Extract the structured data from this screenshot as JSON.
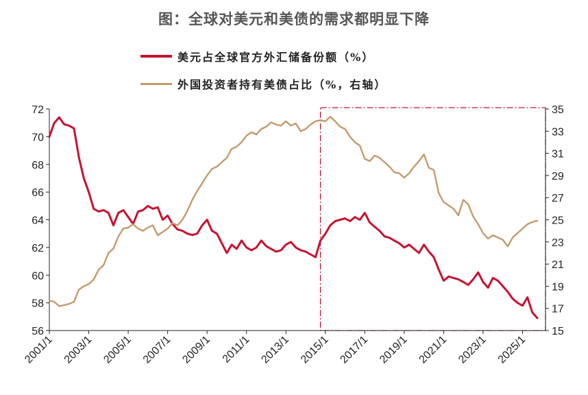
{
  "title": "图：全球对美元和美债的需求都明显下降",
  "legend": [
    {
      "label": "美元占全球官方外汇储备份额（%）",
      "color": "#c8102e"
    },
    {
      "label": "外国投资者持有美债占比（%，右轴）",
      "color": "#c49a6c"
    }
  ],
  "chart_data": {
    "type": "line",
    "title": "图：全球对美元和美债的需求都明显下降",
    "x_ticks": [
      "2001/1",
      "2003/1",
      "2005/1",
      "2007/1",
      "2009/1",
      "2011/1",
      "2013/1",
      "2015/1",
      "2017/1",
      "2019/1",
      "2021/1",
      "2023/1",
      "2025/1"
    ],
    "y_left": {
      "min": 56,
      "max": 72,
      "ticks": [
        56,
        58,
        60,
        62,
        64,
        66,
        68,
        70,
        72
      ]
    },
    "y_right": {
      "min": 15,
      "max": 35,
      "ticks": [
        15,
        17,
        19,
        21,
        23,
        25,
        27,
        29,
        31,
        33,
        35
      ]
    },
    "highlight_range": [
      "2014/10",
      "2026/3"
    ],
    "series": [
      {
        "name": "美元占全球官方外汇储备份额（%）",
        "axis": "left",
        "color": "#c8102e",
        "points": [
          [
            "2001/1",
            70.0
          ],
          [
            "2001/4",
            71.0
          ],
          [
            "2001/7",
            71.4
          ],
          [
            "2001/10",
            70.9
          ],
          [
            "2002/1",
            70.8
          ],
          [
            "2002/4",
            70.6
          ],
          [
            "2002/7",
            68.5
          ],
          [
            "2002/10",
            67.0
          ],
          [
            "2003/1",
            66.0
          ],
          [
            "2003/4",
            64.8
          ],
          [
            "2003/7",
            64.6
          ],
          [
            "2003/10",
            64.7
          ],
          [
            "2004/1",
            64.5
          ],
          [
            "2004/4",
            63.6
          ],
          [
            "2004/7",
            64.5
          ],
          [
            "2004/10",
            64.7
          ],
          [
            "2005/1",
            64.2
          ],
          [
            "2005/4",
            63.7
          ],
          [
            "2005/7",
            64.6
          ],
          [
            "2005/10",
            64.7
          ],
          [
            "2006/1",
            65.0
          ],
          [
            "2006/4",
            64.8
          ],
          [
            "2006/7",
            64.9
          ],
          [
            "2006/10",
            64.0
          ],
          [
            "2007/1",
            64.3
          ],
          [
            "2007/4",
            63.7
          ],
          [
            "2007/7",
            63.3
          ],
          [
            "2007/10",
            63.2
          ],
          [
            "2008/1",
            63.0
          ],
          [
            "2008/4",
            62.9
          ],
          [
            "2008/7",
            63.0
          ],
          [
            "2008/10",
            63.6
          ],
          [
            "2009/1",
            64.0
          ],
          [
            "2009/4",
            63.2
          ],
          [
            "2009/7",
            63.0
          ],
          [
            "2009/10",
            62.3
          ],
          [
            "2010/1",
            61.6
          ],
          [
            "2010/4",
            62.2
          ],
          [
            "2010/7",
            61.9
          ],
          [
            "2010/10",
            62.5
          ],
          [
            "2011/1",
            62.0
          ],
          [
            "2011/4",
            61.8
          ],
          [
            "2011/7",
            62.0
          ],
          [
            "2011/10",
            62.5
          ],
          [
            "2012/1",
            62.1
          ],
          [
            "2012/4",
            61.9
          ],
          [
            "2012/7",
            61.7
          ],
          [
            "2012/10",
            61.8
          ],
          [
            "2013/1",
            62.2
          ],
          [
            "2013/4",
            62.4
          ],
          [
            "2013/7",
            62.0
          ],
          [
            "2013/10",
            61.8
          ],
          [
            "2014/1",
            61.7
          ],
          [
            "2014/4",
            61.5
          ],
          [
            "2014/7",
            61.3
          ],
          [
            "2014/10",
            62.5
          ],
          [
            "2015/1",
            63.0
          ],
          [
            "2015/4",
            63.6
          ],
          [
            "2015/7",
            63.9
          ],
          [
            "2015/10",
            64.0
          ],
          [
            "2016/1",
            64.1
          ],
          [
            "2016/4",
            63.9
          ],
          [
            "2016/7",
            64.2
          ],
          [
            "2016/10",
            64.0
          ],
          [
            "2017/1",
            64.5
          ],
          [
            "2017/4",
            63.8
          ],
          [
            "2017/7",
            63.5
          ],
          [
            "2017/10",
            63.2
          ],
          [
            "2018/1",
            62.8
          ],
          [
            "2018/4",
            62.7
          ],
          [
            "2018/7",
            62.5
          ],
          [
            "2018/10",
            62.3
          ],
          [
            "2019/1",
            62.0
          ],
          [
            "2019/4",
            62.2
          ],
          [
            "2019/7",
            61.9
          ],
          [
            "2019/10",
            61.6
          ],
          [
            "2020/1",
            62.2
          ],
          [
            "2020/4",
            61.7
          ],
          [
            "2020/7",
            61.3
          ],
          [
            "2020/10",
            60.4
          ],
          [
            "2021/1",
            59.6
          ],
          [
            "2021/4",
            59.9
          ],
          [
            "2021/7",
            59.8
          ],
          [
            "2021/10",
            59.7
          ],
          [
            "2022/1",
            59.5
          ],
          [
            "2022/4",
            59.3
          ],
          [
            "2022/7",
            59.7
          ],
          [
            "2022/10",
            60.2
          ],
          [
            "2023/1",
            59.5
          ],
          [
            "2023/4",
            59.1
          ],
          [
            "2023/7",
            59.8
          ],
          [
            "2023/10",
            59.6
          ],
          [
            "2024/1",
            59.2
          ],
          [
            "2024/4",
            58.8
          ],
          [
            "2024/7",
            58.3
          ],
          [
            "2024/10",
            58.0
          ],
          [
            "2025/1",
            57.8
          ],
          [
            "2025/4",
            58.4
          ],
          [
            "2025/7",
            57.3
          ],
          [
            "2025/10",
            56.9
          ]
        ]
      },
      {
        "name": "外国投资者持有美债占比（%，右轴）",
        "axis": "right",
        "color": "#c49a6c",
        "points": [
          [
            "2001/1",
            17.7
          ],
          [
            "2001/4",
            17.6
          ],
          [
            "2001/7",
            17.2
          ],
          [
            "2001/10",
            17.3
          ],
          [
            "2002/1",
            17.4
          ],
          [
            "2002/4",
            17.6
          ],
          [
            "2002/7",
            18.7
          ],
          [
            "2002/10",
            19.0
          ],
          [
            "2003/1",
            19.2
          ],
          [
            "2003/4",
            19.6
          ],
          [
            "2003/7",
            20.5
          ],
          [
            "2003/10",
            20.9
          ],
          [
            "2004/1",
            22.0
          ],
          [
            "2004/4",
            22.4
          ],
          [
            "2004/7",
            23.5
          ],
          [
            "2004/10",
            24.2
          ],
          [
            "2005/1",
            24.3
          ],
          [
            "2005/4",
            24.6
          ],
          [
            "2005/7",
            24.2
          ],
          [
            "2005/10",
            24.0
          ],
          [
            "2006/1",
            24.3
          ],
          [
            "2006/4",
            24.5
          ],
          [
            "2006/7",
            23.6
          ],
          [
            "2006/10",
            23.9
          ],
          [
            "2007/1",
            24.2
          ],
          [
            "2007/4",
            24.7
          ],
          [
            "2007/7",
            24.5
          ],
          [
            "2007/10",
            25.0
          ],
          [
            "2008/1",
            25.8
          ],
          [
            "2008/4",
            26.8
          ],
          [
            "2008/7",
            27.6
          ],
          [
            "2008/10",
            28.3
          ],
          [
            "2009/1",
            29.0
          ],
          [
            "2009/4",
            29.6
          ],
          [
            "2009/7",
            29.8
          ],
          [
            "2009/10",
            30.2
          ],
          [
            "2010/1",
            30.6
          ],
          [
            "2010/4",
            31.4
          ],
          [
            "2010/7",
            31.6
          ],
          [
            "2010/10",
            32.0
          ],
          [
            "2011/1",
            32.6
          ],
          [
            "2011/4",
            32.9
          ],
          [
            "2011/7",
            32.7
          ],
          [
            "2011/10",
            33.2
          ],
          [
            "2012/1",
            33.4
          ],
          [
            "2012/4",
            33.8
          ],
          [
            "2012/7",
            33.6
          ],
          [
            "2012/10",
            33.5
          ],
          [
            "2013/1",
            33.9
          ],
          [
            "2013/4",
            33.5
          ],
          [
            "2013/7",
            33.7
          ],
          [
            "2013/10",
            33.0
          ],
          [
            "2014/1",
            33.2
          ],
          [
            "2014/4",
            33.6
          ],
          [
            "2014/7",
            33.9
          ],
          [
            "2014/10",
            34.0
          ],
          [
            "2015/1",
            33.9
          ],
          [
            "2015/4",
            34.3
          ],
          [
            "2015/7",
            33.9
          ],
          [
            "2015/10",
            33.4
          ],
          [
            "2016/1",
            33.2
          ],
          [
            "2016/4",
            32.5
          ],
          [
            "2016/7",
            32.0
          ],
          [
            "2016/10",
            31.7
          ],
          [
            "2017/1",
            30.5
          ],
          [
            "2017/4",
            30.3
          ],
          [
            "2017/7",
            30.8
          ],
          [
            "2017/10",
            30.6
          ],
          [
            "2018/1",
            30.2
          ],
          [
            "2018/4",
            29.8
          ],
          [
            "2018/7",
            29.3
          ],
          [
            "2018/10",
            29.2
          ],
          [
            "2019/1",
            28.8
          ],
          [
            "2019/4",
            29.2
          ],
          [
            "2019/7",
            29.8
          ],
          [
            "2019/10",
            30.3
          ],
          [
            "2020/1",
            30.9
          ],
          [
            "2020/4",
            29.7
          ],
          [
            "2020/7",
            29.5
          ],
          [
            "2020/10",
            27.4
          ],
          [
            "2021/1",
            26.6
          ],
          [
            "2021/4",
            26.3
          ],
          [
            "2021/7",
            26.0
          ],
          [
            "2021/10",
            25.4
          ],
          [
            "2022/1",
            26.8
          ],
          [
            "2022/4",
            26.4
          ],
          [
            "2022/7",
            25.3
          ],
          [
            "2022/10",
            24.6
          ],
          [
            "2023/1",
            23.8
          ],
          [
            "2023/4",
            23.3
          ],
          [
            "2023/7",
            23.6
          ],
          [
            "2023/10",
            23.4
          ],
          [
            "2024/1",
            23.2
          ],
          [
            "2024/4",
            22.6
          ],
          [
            "2024/7",
            23.4
          ],
          [
            "2024/10",
            23.8
          ],
          [
            "2025/1",
            24.2
          ],
          [
            "2025/4",
            24.6
          ],
          [
            "2025/7",
            24.8
          ],
          [
            "2025/10",
            24.9
          ]
        ]
      }
    ]
  }
}
